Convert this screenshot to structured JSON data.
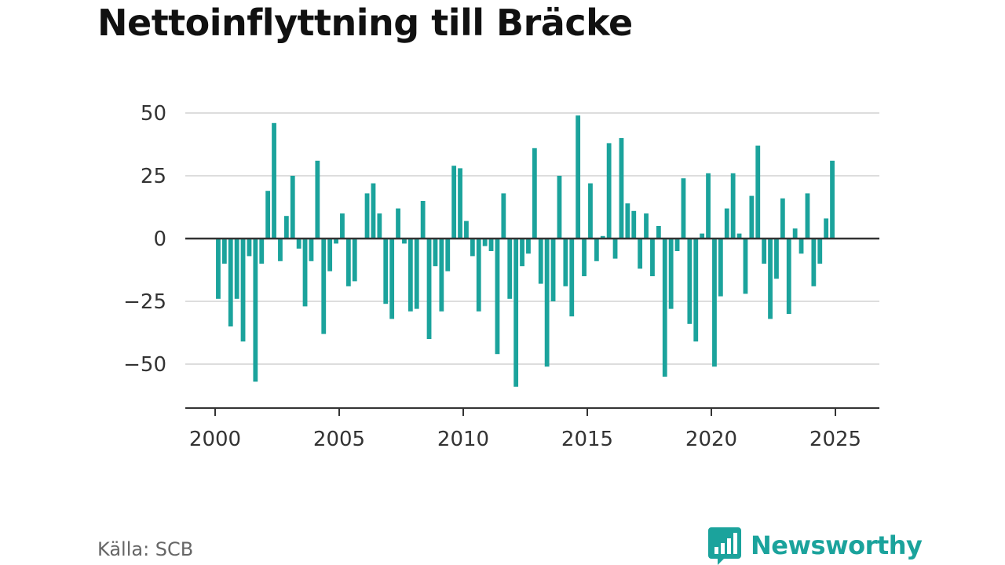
{
  "title": "Nettoinflyttning till Bräcke",
  "source": "Källa: SCB",
  "brand": {
    "name": "Newsworthy",
    "icon": "bar-chart-logo-icon"
  },
  "colors": {
    "bar": "#1ba39c",
    "grid": "#dddddd",
    "zero_line": "#333333",
    "axis": "#333333",
    "brand": "#1ba39c"
  },
  "chart_data": {
    "type": "bar",
    "title": "Nettoinflyttning till Bräcke",
    "xlabel": "",
    "ylabel": "",
    "ylim": [
      -62,
      62
    ],
    "xlim": [
      1999.0,
      2026.7
    ],
    "grid": true,
    "yticks": [
      50,
      25,
      0,
      -25,
      -50
    ],
    "ytick_labels": [
      "50",
      "25",
      "0",
      "−25",
      "−50"
    ],
    "xticks": [
      2000,
      2005,
      2010,
      2015,
      2020,
      2025
    ],
    "xtick_labels": [
      "2000",
      "2005",
      "2010",
      "2015",
      "2020",
      "2025"
    ],
    "x_start": 2000.125,
    "x_step": 0.25,
    "values": [
      -24,
      -10,
      -35,
      -24,
      -41,
      -7,
      -57,
      -10,
      19,
      46,
      -9,
      9,
      25,
      -4,
      -27,
      -9,
      31,
      -38,
      -13,
      -2,
      10,
      -19,
      -17,
      0,
      18,
      22,
      10,
      -26,
      -32,
      12,
      -2,
      -29,
      -28,
      15,
      -40,
      -11,
      -29,
      -13,
      29,
      28,
      7,
      -7,
      -29,
      -3,
      -5,
      -46,
      18,
      -24,
      -59,
      -11,
      -6,
      36,
      -18,
      -51,
      -25,
      25,
      -19,
      -31,
      49,
      -15,
      22,
      -9,
      1,
      38,
      -8,
      40,
      14,
      11,
      -12,
      10,
      -15,
      5,
      -55,
      -28,
      -5,
      24,
      -34,
      -41,
      2,
      26,
      -51,
      -23,
      12,
      26,
      2,
      -22,
      17,
      37,
      -10,
      -32,
      -16,
      16,
      -30,
      4,
      -6,
      18,
      -19,
      -10,
      8,
      31
    ]
  }
}
